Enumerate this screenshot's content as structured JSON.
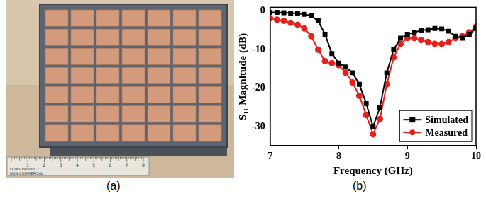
{
  "panel_labels": [
    "(a)",
    "(b)"
  ],
  "photo": {
    "patch_rows": 7,
    "patch_cols": 7,
    "ruler_labels": [
      "1",
      "2",
      "3",
      "4",
      "5",
      "6",
      "7",
      "8"
    ],
    "ruler_text": [
      "DOMS PRODUCT",
      "NON-COMMERCIAL"
    ]
  },
  "chart_data": {
    "type": "line",
    "x_label": "Frequency (GHz)",
    "y_label": "S₁₁ Magnitude (dB)",
    "xlim": [
      7,
      10
    ],
    "xticks": [
      7,
      8,
      9,
      10
    ],
    "ylim": [
      -35,
      1
    ],
    "yticks": [
      -30,
      -20,
      -10,
      0
    ],
    "grid": false,
    "legend": "lower right",
    "x": [
      7.0,
      7.1,
      7.2,
      7.3,
      7.4,
      7.5,
      7.6,
      7.7,
      7.8,
      7.9,
      8.0,
      8.1,
      8.2,
      8.3,
      8.4,
      8.5,
      8.6,
      8.7,
      8.8,
      8.9,
      9.0,
      9.1,
      9.2,
      9.3,
      9.4,
      9.5,
      9.6,
      9.7,
      9.8,
      9.9,
      10.0
    ],
    "series": [
      {
        "name": "Simulated",
        "color": "#000000",
        "marker": "square",
        "line_style": "solid",
        "values": [
          -0.3,
          -0.3,
          -0.4,
          -0.5,
          -0.6,
          -0.8,
          -1.2,
          -2.5,
          -6,
          -11,
          -13.5,
          -14.5,
          -16,
          -19,
          -24,
          -30,
          -25,
          -16,
          -10,
          -7,
          -6,
          -5.5,
          -5,
          -4.8,
          -4.5,
          -4.6,
          -5.2,
          -6.5,
          -7,
          -6,
          -4.5
        ]
      },
      {
        "name": "Measured",
        "color": "#e8201c",
        "marker": "circle",
        "line_style": "solid",
        "values": [
          -1.8,
          -2.2,
          -2.5,
          -3,
          -3.5,
          -4.5,
          -6.5,
          -10,
          -13,
          -13.5,
          -14,
          -16,
          -18.5,
          -22,
          -27,
          -32,
          -28,
          -19,
          -12,
          -8.5,
          -7,
          -7,
          -7.5,
          -8,
          -8.5,
          -8.5,
          -8,
          -7,
          -6.5,
          -5.5,
          -4
        ]
      }
    ]
  }
}
